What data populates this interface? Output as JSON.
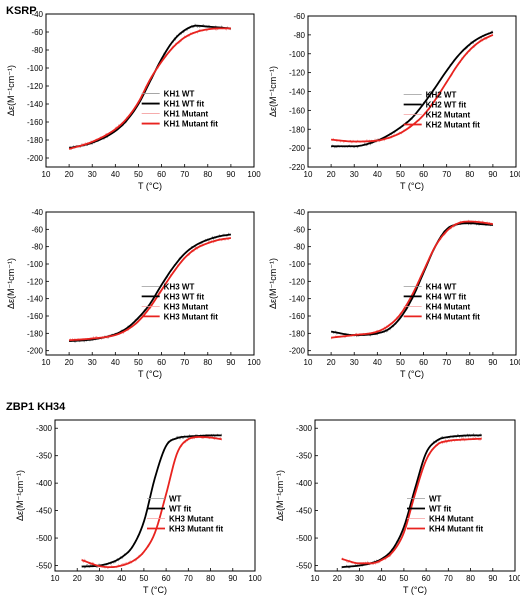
{
  "figure": {
    "section_labels": [
      "KSRP",
      "ZBP1 KH34"
    ]
  },
  "chart_data": [
    {
      "type": "line",
      "ylabel": "Δε(M⁻¹cm⁻¹)",
      "xlabel": "T (°C)",
      "xlim": [
        10,
        100
      ],
      "xticks": [
        10,
        20,
        30,
        40,
        50,
        60,
        70,
        80,
        90,
        100
      ],
      "ylim": [
        -210,
        -40
      ],
      "yticks": [
        -200,
        -180,
        -160,
        -140,
        -120,
        -100,
        -80,
        -60,
        -40
      ],
      "legend_position": "right",
      "series": [
        {
          "name": "KH1 WT",
          "color": "#9a9a9a",
          "style": "noisy",
          "x": [
            20,
            30,
            40,
            45,
            50,
            55,
            60,
            65,
            70,
            75,
            80,
            85,
            90
          ],
          "y": [
            -189,
            -183,
            -170,
            -158,
            -140,
            -115,
            -90,
            -70,
            -58,
            -53,
            -54,
            -55,
            -56
          ]
        },
        {
          "name": "KH1 WT fit",
          "color": "#000000",
          "style": "fit",
          "x": [
            20,
            30,
            40,
            45,
            50,
            55,
            60,
            65,
            70,
            75,
            80,
            85,
            90
          ],
          "y": [
            -189,
            -183,
            -170,
            -158,
            -140,
            -115,
            -90,
            -70,
            -58,
            -53,
            -54,
            -55,
            -56
          ]
        },
        {
          "name": "KH1 Mutant",
          "color": "#f4a0a0",
          "style": "noisy",
          "x": [
            20,
            30,
            40,
            45,
            50,
            55,
            60,
            65,
            70,
            75,
            80,
            85,
            90
          ],
          "y": [
            -190,
            -182,
            -168,
            -156,
            -138,
            -113,
            -93,
            -77,
            -66,
            -60,
            -57,
            -56,
            -56
          ]
        },
        {
          "name": "KH1 Mutant fit",
          "color": "#e8231f",
          "style": "fit",
          "x": [
            20,
            30,
            40,
            45,
            50,
            55,
            60,
            65,
            70,
            75,
            80,
            85,
            90
          ],
          "y": [
            -190,
            -182,
            -168,
            -156,
            -138,
            -113,
            -93,
            -77,
            -66,
            -60,
            -57,
            -56,
            -56
          ]
        }
      ]
    },
    {
      "type": "line",
      "ylabel": "Δε(M⁻¹cm⁻¹)",
      "xlabel": "T (°C)",
      "xlim": [
        10,
        100
      ],
      "xticks": [
        10,
        20,
        30,
        40,
        50,
        60,
        70,
        80,
        90,
        100
      ],
      "ylim": [
        -220,
        -60
      ],
      "yticks": [
        -220,
        -200,
        -180,
        -160,
        -140,
        -120,
        -100,
        -80,
        -60
      ],
      "legend_position": "right",
      "series": [
        {
          "name": "KH2 WT",
          "color": "#9a9a9a",
          "style": "noisy",
          "x": [
            20,
            30,
            40,
            45,
            50,
            55,
            60,
            65,
            70,
            75,
            80,
            85,
            90
          ],
          "y": [
            -198,
            -198,
            -192,
            -186,
            -178,
            -168,
            -153,
            -136,
            -118,
            -102,
            -90,
            -82,
            -77
          ]
        },
        {
          "name": "KH2 WT fit",
          "color": "#000000",
          "style": "fit",
          "x": [
            20,
            30,
            40,
            45,
            50,
            55,
            60,
            65,
            70,
            75,
            80,
            85,
            90
          ],
          "y": [
            -198,
            -198,
            -192,
            -186,
            -178,
            -168,
            -153,
            -136,
            -118,
            -102,
            -90,
            -82,
            -77
          ]
        },
        {
          "name": "KH2 Mutant",
          "color": "#f4a0a0",
          "style": "noisy",
          "x": [
            20,
            30,
            40,
            45,
            50,
            55,
            60,
            65,
            70,
            75,
            80,
            85,
            90
          ],
          "y": [
            -191,
            -193,
            -192,
            -189,
            -184,
            -176,
            -165,
            -149,
            -130,
            -111,
            -96,
            -86,
            -80
          ]
        },
        {
          "name": "KH2 Mutant fit",
          "color": "#e8231f",
          "style": "fit",
          "x": [
            20,
            30,
            40,
            45,
            50,
            55,
            60,
            65,
            70,
            75,
            80,
            85,
            90
          ],
          "y": [
            -191,
            -193,
            -192,
            -189,
            -184,
            -176,
            -165,
            -149,
            -130,
            -111,
            -96,
            -86,
            -80
          ]
        }
      ]
    },
    {
      "type": "line",
      "ylabel": "Δε(M⁻¹cm⁻¹)",
      "xlabel": "T (°C)",
      "xlim": [
        10,
        100
      ],
      "xticks": [
        10,
        20,
        30,
        40,
        50,
        60,
        70,
        80,
        90,
        100
      ],
      "ylim": [
        -205,
        -40
      ],
      "yticks": [
        -200,
        -180,
        -160,
        -140,
        -120,
        -100,
        -80,
        -60,
        -40
      ],
      "legend_position": "right",
      "series": [
        {
          "name": "KH3 WT",
          "color": "#9a9a9a",
          "style": "noisy",
          "x": [
            20,
            30,
            40,
            45,
            50,
            55,
            60,
            65,
            70,
            75,
            80,
            85,
            90
          ],
          "y": [
            -189,
            -187,
            -181,
            -174,
            -162,
            -146,
            -124,
            -104,
            -88,
            -78,
            -72,
            -68,
            -66
          ]
        },
        {
          "name": "KH3 WT fit",
          "color": "#000000",
          "style": "fit",
          "x": [
            20,
            30,
            40,
            45,
            50,
            55,
            60,
            65,
            70,
            75,
            80,
            85,
            90
          ],
          "y": [
            -189,
            -187,
            -181,
            -174,
            -162,
            -146,
            -124,
            -104,
            -88,
            -78,
            -72,
            -68,
            -66
          ]
        },
        {
          "name": "KH3 Mutant",
          "color": "#f4a0a0",
          "style": "noisy",
          "x": [
            20,
            30,
            40,
            45,
            50,
            55,
            60,
            65,
            70,
            75,
            80,
            85,
            90
          ],
          "y": [
            -188,
            -186,
            -182,
            -176,
            -166,
            -150,
            -130,
            -110,
            -93,
            -82,
            -76,
            -72,
            -70
          ]
        },
        {
          "name": "KH3 Mutant fit",
          "color": "#e8231f",
          "style": "fit",
          "x": [
            20,
            30,
            40,
            45,
            50,
            55,
            60,
            65,
            70,
            75,
            80,
            85,
            90
          ],
          "y": [
            -188,
            -186,
            -182,
            -176,
            -166,
            -150,
            -130,
            -110,
            -93,
            -82,
            -76,
            -72,
            -70
          ]
        }
      ]
    },
    {
      "type": "line",
      "ylabel": "Δε(M⁻¹cm⁻¹)",
      "xlabel": "T (°C)",
      "xlim": [
        10,
        100
      ],
      "xticks": [
        10,
        20,
        30,
        40,
        50,
        60,
        70,
        80,
        90,
        100
      ],
      "ylim": [
        -205,
        -40
      ],
      "yticks": [
        -200,
        -180,
        -160,
        -140,
        -120,
        -100,
        -80,
        -60,
        -40
      ],
      "legend_position": "right",
      "series": [
        {
          "name": "KH4 WT",
          "color": "#9a9a9a",
          "style": "noisy",
          "x": [
            20,
            30,
            40,
            45,
            50,
            55,
            60,
            65,
            70,
            75,
            80,
            85,
            90
          ],
          "y": [
            -178,
            -182,
            -180,
            -175,
            -162,
            -140,
            -110,
            -80,
            -60,
            -54,
            -53,
            -54,
            -55
          ]
        },
        {
          "name": "KH4 WT fit",
          "color": "#000000",
          "style": "fit",
          "x": [
            20,
            30,
            40,
            45,
            50,
            55,
            60,
            65,
            70,
            75,
            80,
            85,
            90
          ],
          "y": [
            -178,
            -182,
            -180,
            -175,
            -162,
            -140,
            -110,
            -80,
            -60,
            -54,
            -53,
            -54,
            -55
          ]
        },
        {
          "name": "KH4 Mutant",
          "color": "#f4a0a0",
          "style": "noisy",
          "x": [
            20,
            30,
            40,
            45,
            50,
            55,
            60,
            65,
            70,
            75,
            80,
            85,
            90
          ],
          "y": [
            -185,
            -182,
            -178,
            -171,
            -158,
            -136,
            -108,
            -80,
            -62,
            -53,
            -51,
            -52,
            -54
          ]
        },
        {
          "name": "KH4 Mutant fit",
          "color": "#e8231f",
          "style": "fit",
          "x": [
            20,
            30,
            40,
            45,
            50,
            55,
            60,
            65,
            70,
            75,
            80,
            85,
            90
          ],
          "y": [
            -185,
            -182,
            -178,
            -171,
            -158,
            -136,
            -108,
            -80,
            -62,
            -53,
            -51,
            -52,
            -54
          ]
        }
      ]
    },
    {
      "type": "line",
      "ylabel": "Δε(M⁻¹cm⁻¹)",
      "xlabel": "T (°C)",
      "xlim": [
        10,
        100
      ],
      "xticks": [
        10,
        20,
        30,
        40,
        50,
        60,
        70,
        80,
        90,
        100
      ],
      "ylim": [
        -560,
        -285
      ],
      "yticks": [
        -550,
        -500,
        -450,
        -400,
        -350,
        -300
      ],
      "legend_position": "right",
      "series": [
        {
          "name": "WT",
          "color": "#9a9a9a",
          "style": "noisy",
          "x": [
            22,
            30,
            35,
            40,
            45,
            50,
            55,
            60,
            65,
            70,
            75,
            80,
            85
          ],
          "y": [
            -552,
            -550,
            -545,
            -535,
            -515,
            -470,
            -390,
            -332,
            -318,
            -315,
            -314,
            -313,
            -313
          ]
        },
        {
          "name": "WT fit",
          "color": "#000000",
          "style": "fit",
          "x": [
            22,
            30,
            35,
            40,
            45,
            50,
            55,
            60,
            65,
            70,
            75,
            80,
            85
          ],
          "y": [
            -552,
            -550,
            -545,
            -535,
            -515,
            -470,
            -390,
            -332,
            -318,
            -315,
            -314,
            -313,
            -313
          ]
        },
        {
          "name": "KH3 Mutant",
          "color": "#f4a0a0",
          "style": "noisy",
          "x": [
            22,
            30,
            35,
            40,
            45,
            50,
            55,
            60,
            65,
            70,
            75,
            80,
            85
          ],
          "y": [
            -540,
            -551,
            -553,
            -550,
            -542,
            -525,
            -490,
            -420,
            -345,
            -320,
            -316,
            -317,
            -320
          ]
        },
        {
          "name": "KH3 Mutant fit",
          "color": "#e8231f",
          "style": "fit",
          "x": [
            22,
            30,
            35,
            40,
            45,
            50,
            55,
            60,
            65,
            70,
            75,
            80,
            85
          ],
          "y": [
            -540,
            -551,
            -553,
            -550,
            -542,
            -525,
            -490,
            -420,
            -345,
            -320,
            -316,
            -317,
            -320
          ]
        }
      ]
    },
    {
      "type": "line",
      "ylabel": "Δε(M⁻¹cm⁻¹)",
      "xlabel": "T (°C)",
      "xlim": [
        10,
        100
      ],
      "xticks": [
        10,
        20,
        30,
        40,
        50,
        60,
        70,
        80,
        90,
        100
      ],
      "ylim": [
        -560,
        -285
      ],
      "yticks": [
        -550,
        -500,
        -450,
        -400,
        -350,
        -300
      ],
      "legend_position": "right",
      "series": [
        {
          "name": "WT",
          "color": "#9a9a9a",
          "style": "noisy",
          "x": [
            22,
            30,
            35,
            40,
            45,
            50,
            55,
            60,
            65,
            70,
            75,
            80,
            85
          ],
          "y": [
            -553,
            -550,
            -546,
            -538,
            -520,
            -480,
            -410,
            -345,
            -322,
            -316,
            -314,
            -313,
            -313
          ]
        },
        {
          "name": "WT fit",
          "color": "#000000",
          "style": "fit",
          "x": [
            22,
            30,
            35,
            40,
            45,
            50,
            55,
            60,
            65,
            70,
            75,
            80,
            85
          ],
          "y": [
            -553,
            -550,
            -546,
            -538,
            -520,
            -480,
            -410,
            -345,
            -322,
            -316,
            -314,
            -313,
            -313
          ]
        },
        {
          "name": "KH4 Mutant",
          "color": "#f4a0a0",
          "style": "noisy",
          "x": [
            22,
            30,
            35,
            40,
            45,
            50,
            55,
            60,
            65,
            70,
            75,
            80,
            85
          ],
          "y": [
            -538,
            -546,
            -546,
            -540,
            -525,
            -490,
            -420,
            -358,
            -330,
            -323,
            -321,
            -320,
            -319
          ]
        },
        {
          "name": "KH4 Mutant fit",
          "color": "#e8231f",
          "style": "fit",
          "x": [
            22,
            30,
            35,
            40,
            45,
            50,
            55,
            60,
            65,
            70,
            75,
            80,
            85
          ],
          "y": [
            -538,
            -546,
            -546,
            -540,
            -525,
            -490,
            -420,
            -358,
            -330,
            -323,
            -321,
            -320,
            -319
          ]
        }
      ]
    }
  ]
}
